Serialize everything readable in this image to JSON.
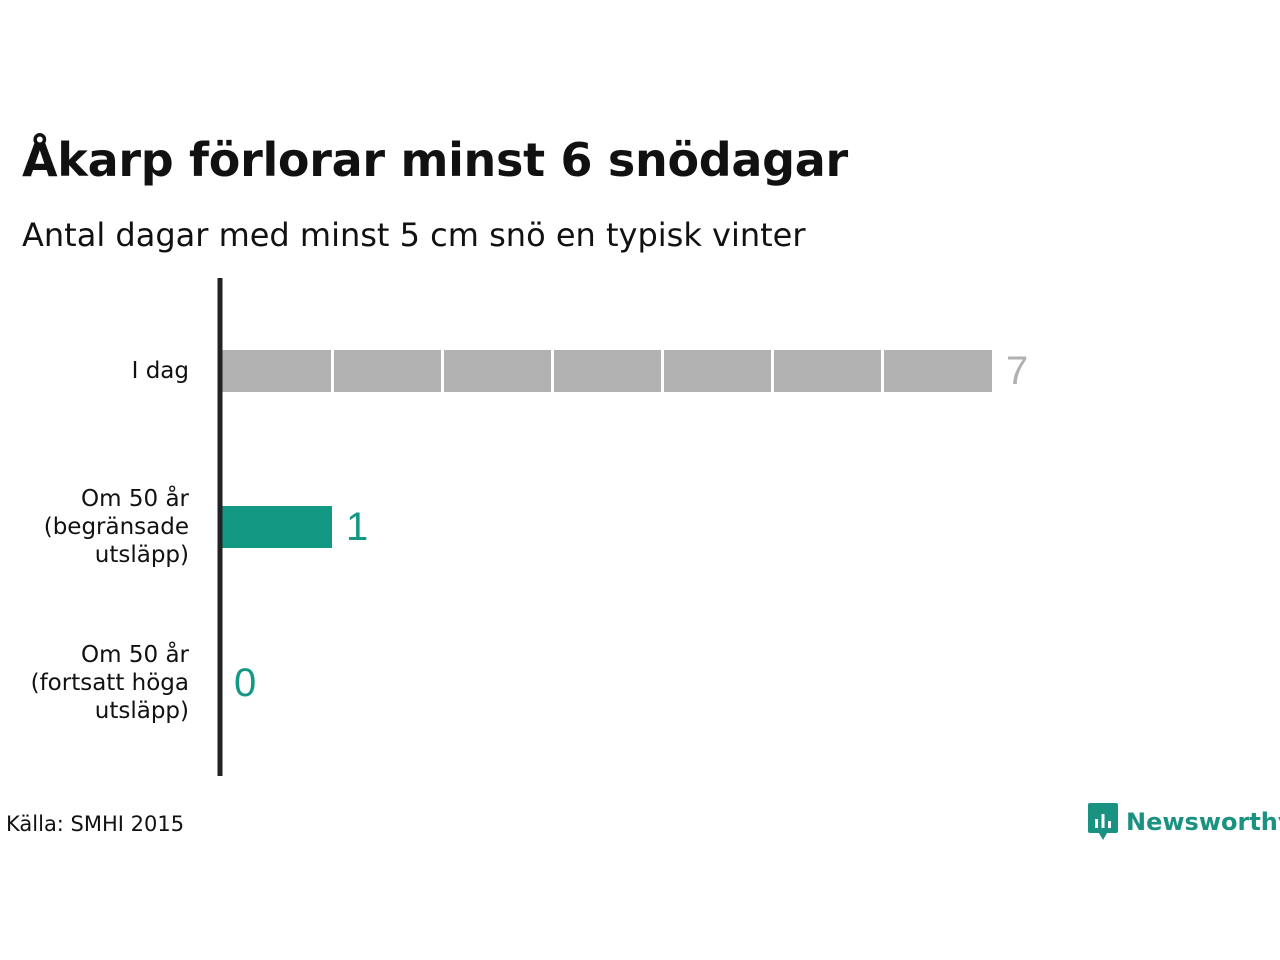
{
  "title": "Åkarp förlorar minst 6 snödagar",
  "subtitle": "Antal dagar med minst 5 cm snö en typisk vinter",
  "source": "Källa: SMHI 2015",
  "brand": {
    "name": "Newsworthy",
    "color": "#1a9282",
    "icon": "newsworthy-logo-icon"
  },
  "colors": {
    "today": "#b1b1b1",
    "today_label": "#b1b1b1",
    "future": "#139884",
    "future_label": "#139884",
    "axis": "#222222",
    "segment_divider": "#ffffff"
  },
  "chart_data": {
    "type": "bar",
    "orientation": "horizontal",
    "categories": [
      [
        "I dag"
      ],
      [
        "Om 50 år",
        "(begränsade",
        "utsläpp)"
      ],
      [
        "Om 50 år",
        "(fortsatt höga",
        "utsläpp)"
      ]
    ],
    "values": [
      7,
      1,
      0
    ],
    "value_labels": [
      "7",
      "1",
      "0"
    ],
    "bar_colors": [
      "#b1b1b1",
      "#139884",
      "#139884"
    ],
    "label_colors": [
      "#b1b1b1",
      "#139884",
      "#139884"
    ],
    "unit_segments": true,
    "xlim": [
      0,
      7
    ],
    "grid": false,
    "legend": "none"
  }
}
